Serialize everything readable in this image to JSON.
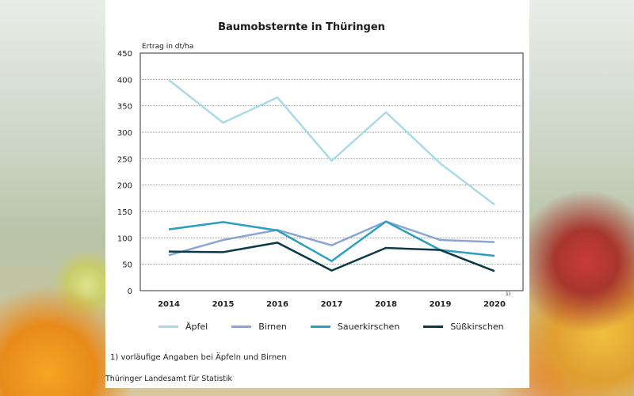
{
  "chart_data": {
    "type": "line",
    "title": "Baumobsternte in Thüringen",
    "ylabel": "Ertrag in dt/ha",
    "ylim": [
      0,
      450
    ],
    "yticks": [
      0,
      50,
      100,
      150,
      200,
      250,
      300,
      350,
      400,
      450
    ],
    "grid": true,
    "legend_position": "bottom",
    "categories": [
      "2014",
      "2015",
      "2016",
      "2017",
      "2018",
      "2019",
      "2020"
    ],
    "x_footnote_marker": "1)",
    "series": [
      {
        "name": "Äpfel",
        "color": "#a8dbe6",
        "values": [
          399,
          318,
          366,
          246,
          338,
          241,
          163
        ]
      },
      {
        "name": "Birnen",
        "color": "#8aa6d6",
        "values": [
          67,
          96,
          115,
          86,
          131,
          96,
          92
        ]
      },
      {
        "name": "Sauerkirschen",
        "color": "#2a9fc0",
        "values": [
          116,
          130,
          114,
          56,
          131,
          77,
          66
        ]
      },
      {
        "name": "Süßkirschen",
        "color": "#0b3a4a",
        "values": [
          74,
          73,
          91,
          38,
          81,
          77,
          37
        ]
      }
    ]
  },
  "footnote": "1) vorläufige Angaben bei Äpfeln und Birnen",
  "source": "Thüringer Landesamt für Statistik"
}
